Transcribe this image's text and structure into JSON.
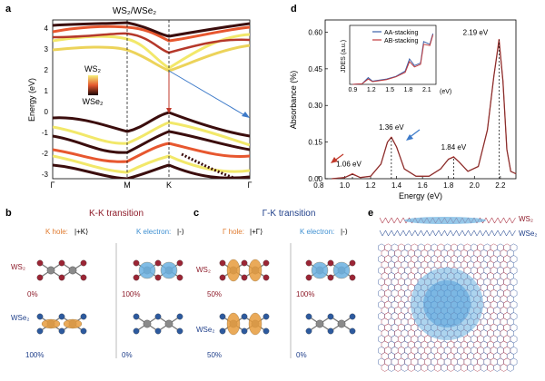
{
  "panel_letters": {
    "a": "a",
    "b": "b",
    "c": "c",
    "d": "d",
    "e": "e"
  },
  "panel_a": {
    "title": "WS₂/WSe₂",
    "ylabel": "Energy (eV)",
    "yticks": [
      "4",
      "3",
      "2",
      "1",
      "0",
      "-1",
      "-2",
      "-3"
    ],
    "xticks": [
      "Γ",
      "M",
      "K",
      "Γ"
    ],
    "legend_top": "WS₂",
    "legend_bottom": "WSe₂",
    "colors": {
      "ws2": "#f5f07a",
      "mid": "#e4572e",
      "wse2": "#3b0d0d"
    }
  },
  "panel_b": {
    "title": "K-K transition",
    "hole_label": "K hole:",
    "hole_ket": "|+K⟩",
    "electron_label": "K electron:",
    "electron_ket": "|-⟩",
    "ws2_label": "WS₂",
    "wse2_label": "WSe₂",
    "hole_ws2_pct": "0%",
    "hole_wse2_pct": "100%",
    "electron_ws2_pct": "100%",
    "electron_wse2_pct": "0%"
  },
  "panel_c": {
    "title": "Γ-K transition",
    "hole_label": "Γ hole:",
    "hole_ket": "|+Γ⟩",
    "electron_label": "K electron:",
    "electron_ket": "|-⟩",
    "ws2_label": "WS₂",
    "wse2_label": "WSe₂",
    "hole_ws2_pct": "50%",
    "hole_wse2_pct": "50%",
    "electron_ws2_pct": "100%",
    "electron_wse2_pct": "0%"
  },
  "panel_e": {
    "ws2_label": "WS₂",
    "wse2_label": "WSe₂"
  },
  "chart_data": {
    "type": "line",
    "xlabel": "Energy (eV)",
    "ylabel": "Absorbance (%)",
    "xlim": [
      0.85,
      2.32
    ],
    "ylim": [
      0,
      0.65
    ],
    "xticks": [
      "0.8",
      "1.0",
      "1.2",
      "1.4",
      "1.6",
      "1.8",
      "2.0",
      "2.2"
    ],
    "yticks": [
      "0.00",
      "0.15",
      "0.30",
      "0.45",
      "0.60"
    ],
    "peaks": [
      {
        "x": 1.06,
        "y": 0.02,
        "label": "1.06 eV"
      },
      {
        "x": 1.36,
        "y": 0.17,
        "label": "1.36 eV"
      },
      {
        "x": 1.84,
        "y": 0.09,
        "label": "1.84 eV"
      },
      {
        "x": 2.19,
        "y": 0.57,
        "label": "2.19 eV"
      }
    ],
    "series": [
      {
        "values_x": [
          0.9,
          1.0,
          1.06,
          1.12,
          1.2,
          1.28,
          1.33,
          1.36,
          1.4,
          1.46,
          1.55,
          1.65,
          1.74,
          1.8,
          1.84,
          1.88,
          1.95,
          2.03,
          2.1,
          2.15,
          2.19,
          2.22,
          2.25,
          2.28,
          2.32
        ],
        "values_y": [
          0.0,
          0.005,
          0.02,
          0.005,
          0.01,
          0.06,
          0.15,
          0.17,
          0.13,
          0.04,
          0.01,
          0.01,
          0.04,
          0.08,
          0.09,
          0.07,
          0.03,
          0.05,
          0.2,
          0.42,
          0.57,
          0.4,
          0.12,
          0.03,
          0.02
        ],
        "color": "#e0423a"
      },
      {
        "values_x": [
          0.9,
          1.0,
          1.06,
          1.12,
          1.2,
          1.28,
          1.33,
          1.36,
          1.4,
          1.46,
          1.55,
          1.65,
          1.74,
          1.8,
          1.84,
          1.88,
          1.95,
          2.03,
          2.1,
          2.15,
          2.19,
          2.22,
          2.25,
          2.28,
          2.32
        ],
        "values_y": [
          0.0,
          0.005,
          0.018,
          0.005,
          0.01,
          0.06,
          0.15,
          0.168,
          0.13,
          0.04,
          0.01,
          0.01,
          0.04,
          0.08,
          0.088,
          0.07,
          0.03,
          0.05,
          0.2,
          0.42,
          0.565,
          0.4,
          0.12,
          0.03,
          0.02
        ],
        "color": "#7a3030"
      }
    ],
    "inset": {
      "ylabel": "JDES (a.u.)",
      "xlabel": "(eV)",
      "xticks": [
        "0.9",
        "1.2",
        "1.5",
        "1.8",
        "2.1"
      ],
      "legend": [
        "AA-stacking",
        "AB-stacking"
      ],
      "series": [
        {
          "name": "AA-stacking",
          "color": "#3a5fa8",
          "x": [
            0.9,
            1.05,
            1.15,
            1.22,
            1.3,
            1.45,
            1.6,
            1.75,
            1.82,
            1.9,
            2.0,
            2.05,
            2.15,
            2.2
          ],
          "y": [
            0.0,
            0.02,
            0.25,
            0.12,
            0.15,
            0.2,
            0.3,
            0.5,
            0.95,
            0.7,
            0.8,
            1.6,
            1.5,
            1.9
          ]
        },
        {
          "name": "AB-stacking",
          "color": "#c0393b",
          "x": [
            0.9,
            1.05,
            1.15,
            1.22,
            1.3,
            1.45,
            1.6,
            1.75,
            1.82,
            1.9,
            2.0,
            2.05,
            2.15,
            2.2
          ],
          "y": [
            0.0,
            0.02,
            0.2,
            0.1,
            0.13,
            0.18,
            0.28,
            0.45,
            0.85,
            0.65,
            0.75,
            1.5,
            1.45,
            1.85
          ]
        }
      ]
    }
  }
}
